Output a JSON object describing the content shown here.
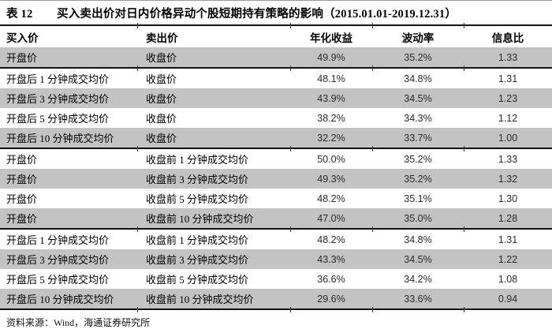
{
  "title": {
    "label": "表 12",
    "text": "买入卖出价对日内价格异动个股短期持有策略的影响（2015.01.01-2019.12.31）"
  },
  "table": {
    "columns": [
      "买入价",
      "卖出价",
      "年化收益",
      "波动率",
      "信息比"
    ],
    "rows": [
      {
        "buy": "开盘价",
        "sell": "收盘价",
        "annual_return": "49.9%",
        "volatility": "35.2%",
        "info_ratio": "1.33"
      },
      {
        "buy": "开盘后 1 分钟成交均价",
        "sell": "收盘价",
        "annual_return": "48.1%",
        "volatility": "34.8%",
        "info_ratio": "1.31"
      },
      {
        "buy": "开盘后 3 分钟成交均价",
        "sell": "收盘价",
        "annual_return": "43.9%",
        "volatility": "34.5%",
        "info_ratio": "1.23"
      },
      {
        "buy": "开盘后 5 分钟成交均价",
        "sell": "收盘价",
        "annual_return": "38.2%",
        "volatility": "34.3%",
        "info_ratio": "1.12"
      },
      {
        "buy": "开盘后 10 分钟成交均价",
        "sell": "收盘价",
        "annual_return": "32.2%",
        "volatility": "33.7%",
        "info_ratio": "1.00"
      },
      {
        "buy": "开盘价",
        "sell": "收盘前 1 分钟成交均价",
        "annual_return": "50.0%",
        "volatility": "35.2%",
        "info_ratio": "1.33"
      },
      {
        "buy": "开盘价",
        "sell": "收盘前 3 分钟成交均价",
        "annual_return": "49.3%",
        "volatility": "35.2%",
        "info_ratio": "1.32"
      },
      {
        "buy": "开盘价",
        "sell": "收盘前 5 分钟成交均价",
        "annual_return": "48.2%",
        "volatility": "35.1%",
        "info_ratio": "1.30"
      },
      {
        "buy": "开盘价",
        "sell": "收盘前 10 分钟成交均价",
        "annual_return": "47.0%",
        "volatility": "35.0%",
        "info_ratio": "1.28"
      },
      {
        "buy": "开盘后 1 分钟成交均价",
        "sell": "收盘前 1 分钟成交均价",
        "annual_return": "48.2%",
        "volatility": "34.8%",
        "info_ratio": "1.31"
      },
      {
        "buy": "开盘后 3 分钟成交均价",
        "sell": "收盘前 3 分钟成交均价",
        "annual_return": "43.3%",
        "volatility": "34.5%",
        "info_ratio": "1.22"
      },
      {
        "buy": "开盘后 5 分钟成交均价",
        "sell": "收盘前 5 分钟成交均价",
        "annual_return": "36.6%",
        "volatility": "34.2%",
        "info_ratio": "1.08"
      },
      {
        "buy": "开盘后 10 分钟成交均价",
        "sell": "收盘前 10 分钟成交均价",
        "annual_return": "29.6%",
        "volatility": "33.6%",
        "info_ratio": "0.94"
      }
    ]
  },
  "footer": {
    "source": "资料来源：Wind，海通证券研究所"
  },
  "colors": {
    "shaded_row": "#c3c3c3",
    "rule": "#111111"
  }
}
